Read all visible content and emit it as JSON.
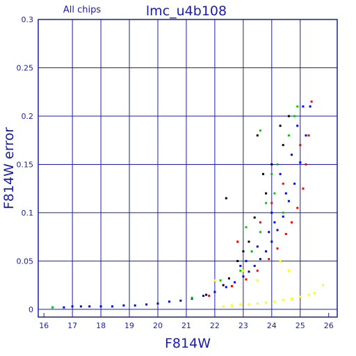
{
  "chart_data": {
    "type": "scatter",
    "title": "lmc_u4b108",
    "subtitle": "All chips",
    "xlabel": "F814W",
    "ylabel": "F814W error",
    "xlim": [
      15.8,
      26.3
    ],
    "ylim": [
      -0.008,
      0.3
    ],
    "x_ticks": [
      "16",
      "17",
      "18",
      "19",
      "20",
      "21",
      "22",
      "23",
      "24",
      "25",
      "26"
    ],
    "y_ticks": [
      "0",
      "0.05",
      "0.1",
      "0.15",
      "0.2",
      "0.25",
      "0.3"
    ],
    "grid": true,
    "series": [
      {
        "color": "#0000ff",
        "points": [
          [
            16.3,
            0.002
          ],
          [
            16.7,
            0.002
          ],
          [
            17.0,
            0.003
          ],
          [
            17.3,
            0.003
          ],
          [
            17.6,
            0.003
          ],
          [
            18.0,
            0.003
          ],
          [
            18.4,
            0.003
          ],
          [
            18.8,
            0.004
          ],
          [
            19.2,
            0.004
          ],
          [
            19.6,
            0.005
          ],
          [
            20.0,
            0.006
          ],
          [
            20.4,
            0.008
          ],
          [
            20.8,
            0.009
          ],
          [
            21.2,
            0.011
          ],
          [
            21.6,
            0.014
          ],
          [
            22.0,
            0.018
          ],
          [
            22.4,
            0.023
          ],
          [
            22.7,
            0.028
          ],
          [
            23.0,
            0.034
          ],
          [
            23.2,
            0.039
          ],
          [
            23.4,
            0.045
          ],
          [
            23.6,
            0.052
          ],
          [
            23.8,
            0.06
          ],
          [
            24.0,
            0.07
          ],
          [
            24.2,
            0.082
          ],
          [
            24.4,
            0.096
          ],
          [
            24.6,
            0.112
          ],
          [
            24.8,
            0.13
          ],
          [
            25.0,
            0.152
          ],
          [
            25.2,
            0.18
          ],
          [
            25.35,
            0.21
          ],
          [
            24.1,
            0.09
          ],
          [
            24.5,
            0.12
          ],
          [
            23.9,
            0.08
          ],
          [
            24.3,
            0.14
          ],
          [
            24.7,
            0.16
          ],
          [
            22.9,
            0.045
          ],
          [
            23.5,
            0.065
          ],
          [
            24.9,
            0.19
          ],
          [
            25.1,
            0.21
          ],
          [
            23.1,
            0.05
          ],
          [
            24.0,
            0.1
          ]
        ]
      },
      {
        "color": "#ff0000",
        "points": [
          [
            21.8,
            0.014
          ],
          [
            22.6,
            0.024
          ],
          [
            23.1,
            0.031
          ],
          [
            23.5,
            0.04
          ],
          [
            23.9,
            0.052
          ],
          [
            24.2,
            0.063
          ],
          [
            24.5,
            0.078
          ],
          [
            24.7,
            0.09
          ],
          [
            24.9,
            0.105
          ],
          [
            25.1,
            0.125
          ],
          [
            25.2,
            0.15
          ],
          [
            25.3,
            0.18
          ],
          [
            25.4,
            0.215
          ],
          [
            22.8,
            0.07
          ],
          [
            23.6,
            0.09
          ],
          [
            24.0,
            0.11
          ],
          [
            24.4,
            0.13
          ],
          [
            25.0,
            0.17
          ]
        ]
      },
      {
        "color": "#00cc00",
        "points": [
          [
            16.3,
            0.002
          ],
          [
            21.2,
            0.012
          ],
          [
            22.2,
            0.03
          ],
          [
            22.9,
            0.04
          ],
          [
            23.3,
            0.06
          ],
          [
            23.6,
            0.08
          ],
          [
            23.8,
            0.11
          ],
          [
            24.0,
            0.14
          ],
          [
            24.2,
            0.15
          ],
          [
            24.4,
            0.1
          ],
          [
            24.6,
            0.18
          ],
          [
            24.8,
            0.2
          ],
          [
            23.6,
            0.185
          ],
          [
            23.1,
            0.085
          ],
          [
            24.1,
            0.12
          ],
          [
            24.9,
            0.21
          ]
        ]
      },
      {
        "color": "#000000",
        "points": [
          [
            21.7,
            0.015
          ],
          [
            22.3,
            0.025
          ],
          [
            22.5,
            0.032
          ],
          [
            22.8,
            0.05
          ],
          [
            23.2,
            0.07
          ],
          [
            23.4,
            0.095
          ],
          [
            23.8,
            0.12
          ],
          [
            24.0,
            0.15
          ],
          [
            24.3,
            0.19
          ],
          [
            24.6,
            0.2
          ],
          [
            23.5,
            0.18
          ],
          [
            22.4,
            0.115
          ],
          [
            23.0,
            0.06
          ],
          [
            24.4,
            0.17
          ],
          [
            23.7,
            0.14
          ]
        ]
      },
      {
        "color": "#ffff00",
        "points": [
          [
            22.3,
            0.003
          ],
          [
            22.6,
            0.004
          ],
          [
            22.9,
            0.005
          ],
          [
            23.2,
            0.005
          ],
          [
            23.5,
            0.006
          ],
          [
            23.8,
            0.007
          ],
          [
            24.1,
            0.008
          ],
          [
            24.4,
            0.01
          ],
          [
            24.7,
            0.011
          ],
          [
            25.0,
            0.013
          ],
          [
            25.3,
            0.015
          ],
          [
            25.5,
            0.017
          ],
          [
            25.8,
            0.025
          ],
          [
            23.0,
            0.04
          ],
          [
            23.5,
            0.03
          ],
          [
            24.3,
            0.05
          ],
          [
            24.6,
            0.04
          ],
          [
            22.0,
            0.03
          ]
        ]
      }
    ]
  }
}
